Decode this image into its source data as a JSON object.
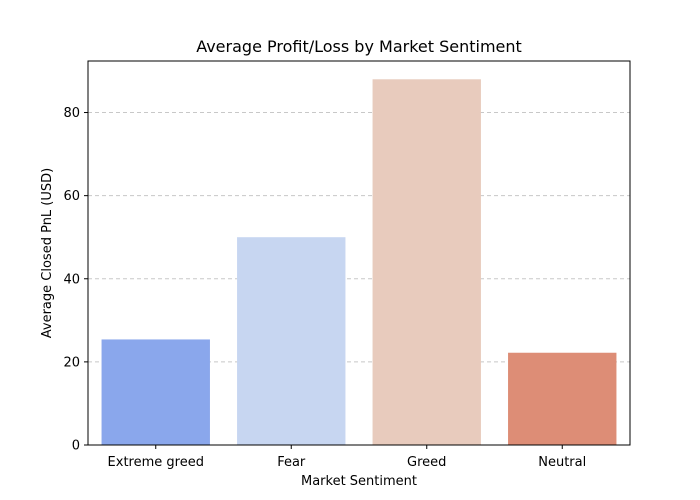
{
  "chart_data": {
    "type": "bar",
    "title": "Average Profit/Loss by Market Sentiment",
    "xlabel": "Market Sentiment",
    "ylabel": "Average Closed PnL (USD)",
    "categories": [
      "Extreme greed",
      "Fear",
      "Greed",
      "Neutral"
    ],
    "values": [
      25.4,
      50.0,
      88.0,
      22.2
    ],
    "colors": [
      "#8aa7ec",
      "#c7d6f1",
      "#e8cbbd",
      "#dd8d76"
    ],
    "ylim": [
      0,
      92.4
    ],
    "yticks": [
      0,
      20,
      40,
      60,
      80
    ],
    "grid": "y-dashed",
    "grid_color": "#c8c8c8"
  }
}
